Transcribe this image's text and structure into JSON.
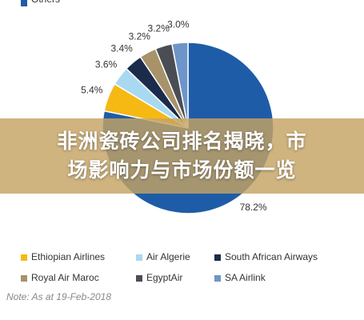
{
  "chart_data": {
    "type": "pie",
    "title": "非洲瓷砖公司排名揭晓，市场影响力与市场份额一览",
    "categories": [
      "Others",
      "Ethiopian Airlines",
      "Air Algerie",
      "South African Airways",
      "Royal Air Maroc",
      "EgyptAir",
      "SA Airlink"
    ],
    "values": [
      78.2,
      5.4,
      3.6,
      3.4,
      3.2,
      3.2,
      3.0
    ],
    "value_labels": [
      "78.2%",
      "5.4%",
      "3.6%",
      "3.4%",
      "3.2%",
      "3.2%",
      "3.0%"
    ],
    "colors": [
      "#1f5ca8",
      "#f6b914",
      "#a9d9f1",
      "#1b2b4b",
      "#a8926a",
      "#4a4e54",
      "#6e95c9"
    ],
    "legend_order": [
      1,
      2,
      3,
      4,
      5,
      6,
      0
    ],
    "note": "Note: As at 19-Feb-2018"
  }
}
